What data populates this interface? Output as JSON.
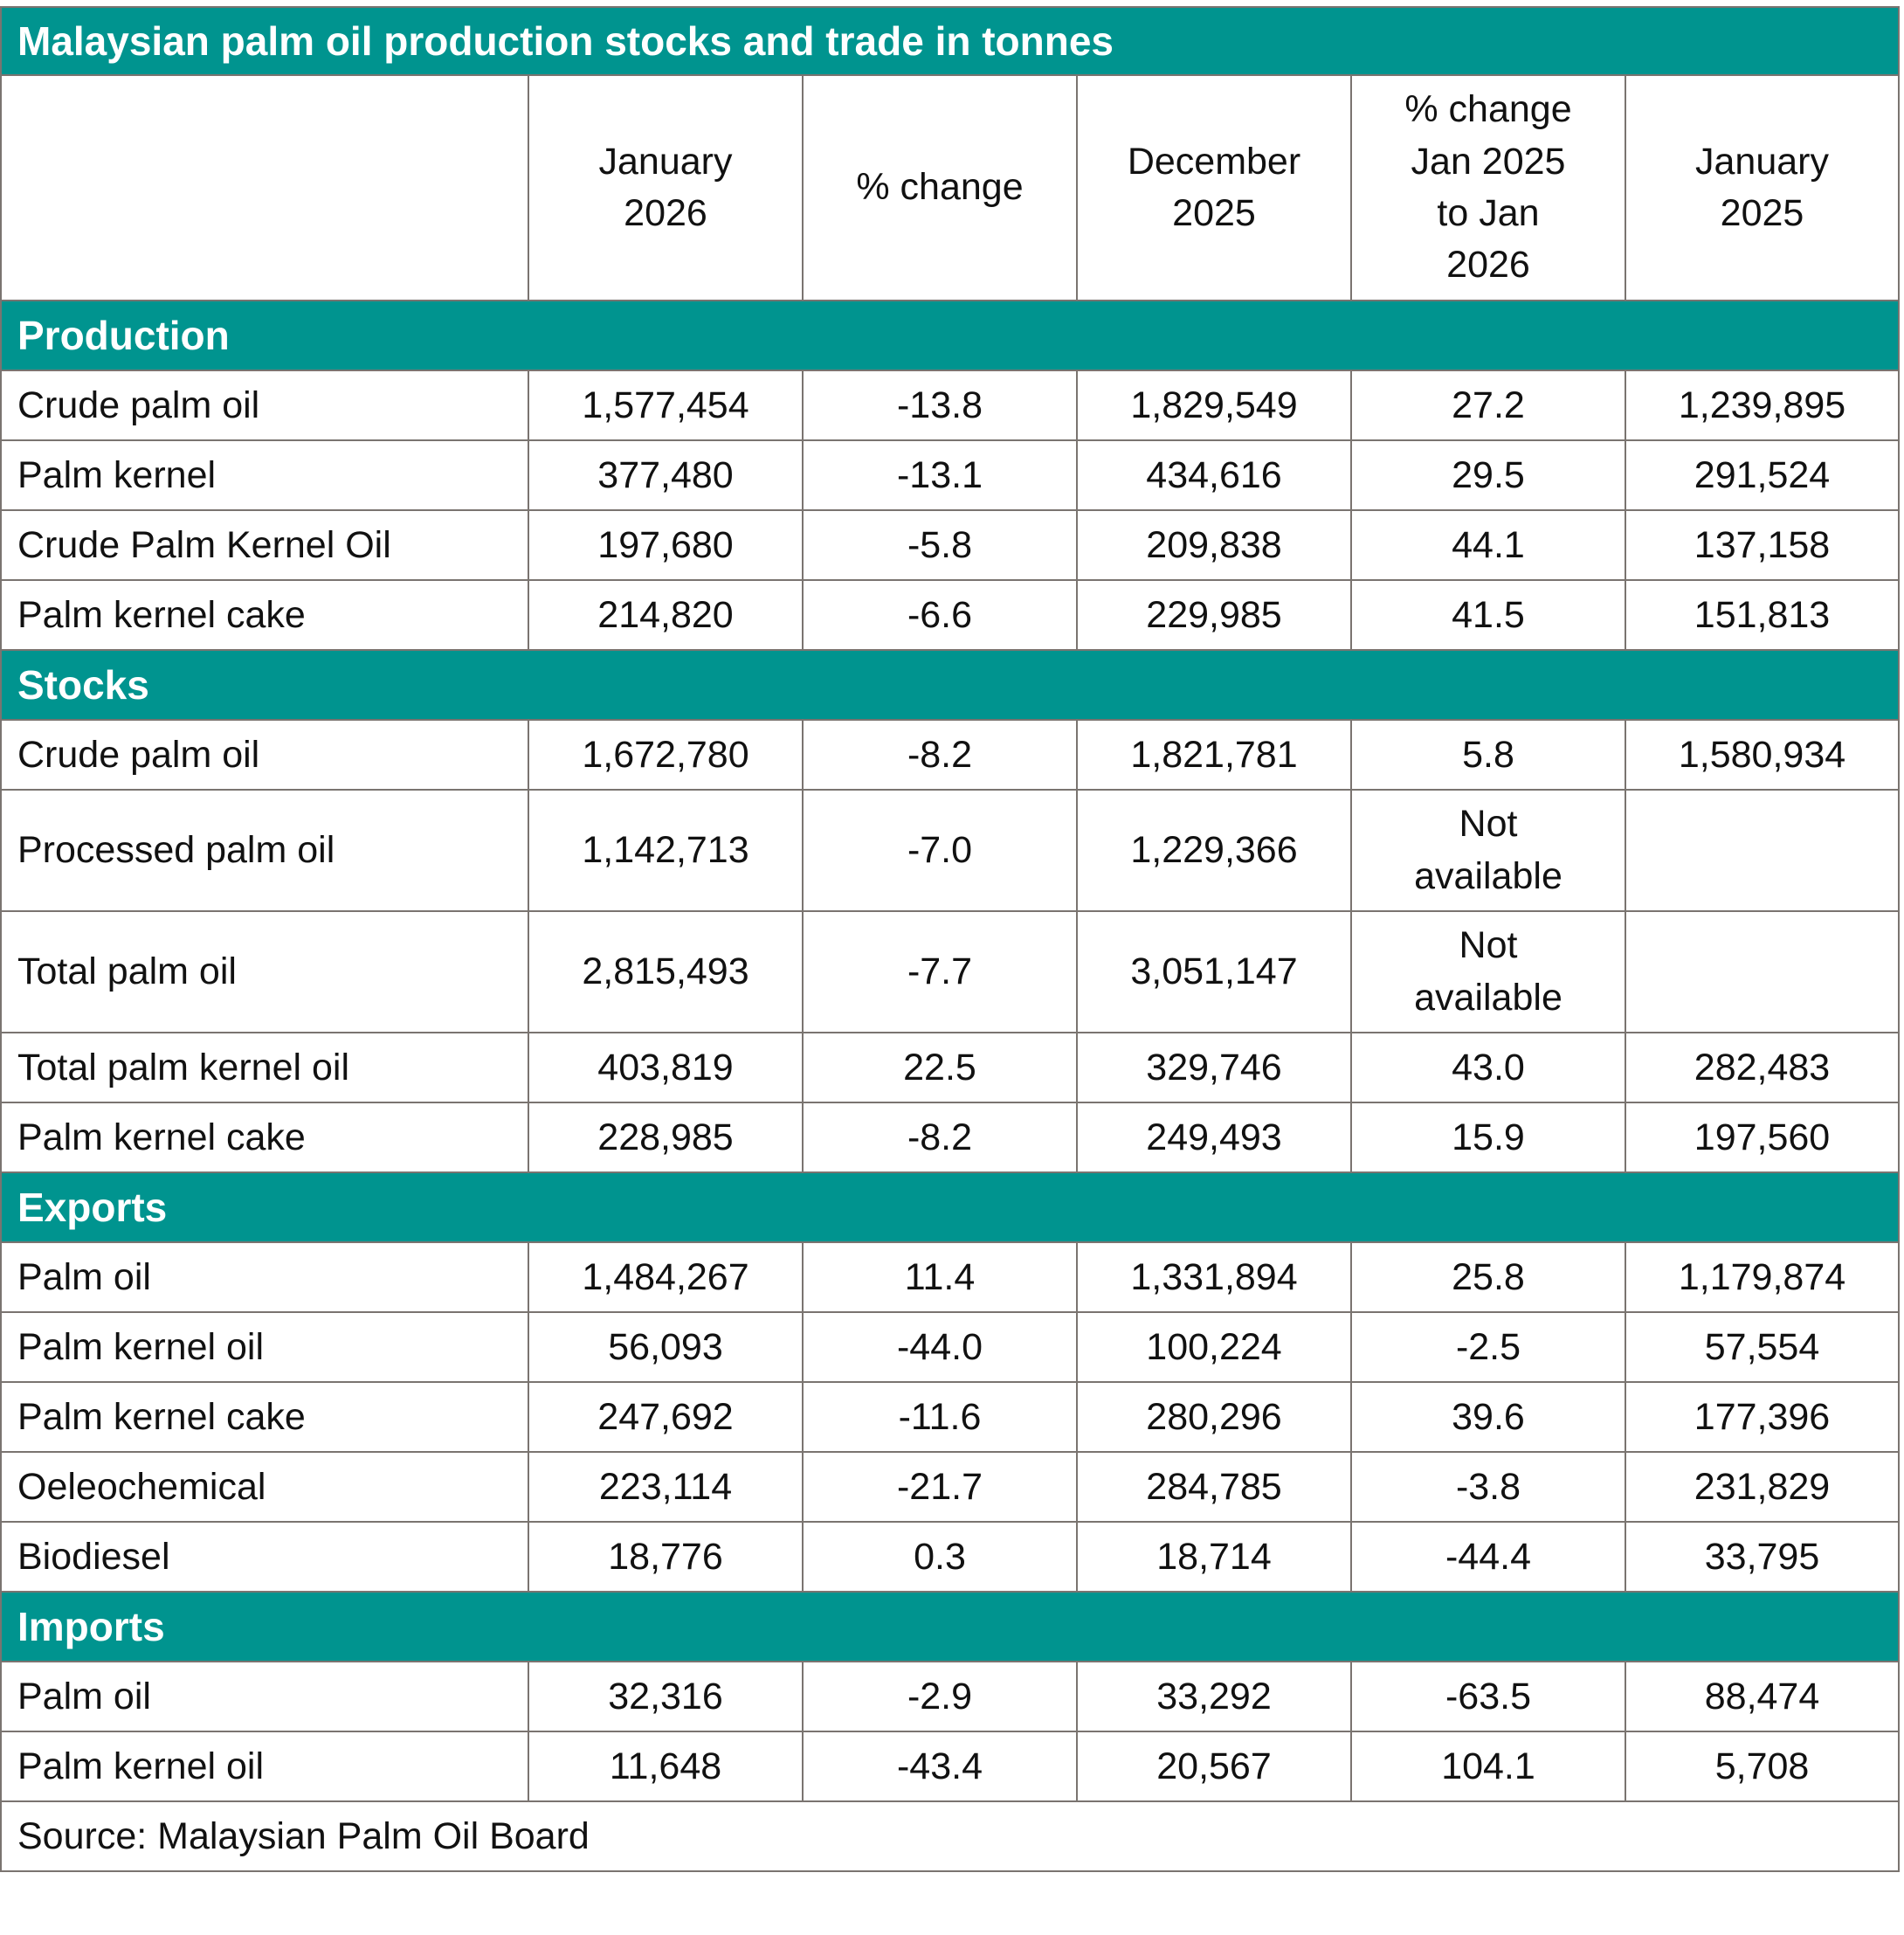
{
  "title": "Malaysian palm oil production stocks and trade in tonnes",
  "accent_color": "#00948f",
  "columns": [
    "",
    "January 2026",
    "% change",
    "December 2025",
    "% change Jan 2025 to Jan 2026",
    "January 2025"
  ],
  "sections": [
    {
      "name": "Production",
      "rows": [
        [
          "Crude palm oil",
          "1,577,454",
          "-13.8",
          "1,829,549",
          "27.2",
          "1,239,895"
        ],
        [
          "Palm kernel",
          "377,480",
          "-13.1",
          "434,616",
          "29.5",
          "291,524"
        ],
        [
          "Crude Palm Kernel Oil",
          "197,680",
          "-5.8",
          "209,838",
          "44.1",
          "137,158"
        ],
        [
          "Palm kernel cake",
          "214,820",
          "-6.6",
          "229,985",
          "41.5",
          "151,813"
        ]
      ]
    },
    {
      "name": "Stocks",
      "rows": [
        [
          "Crude palm oil",
          "1,672,780",
          "-8.2",
          "1,821,781",
          "5.8",
          "1,580,934"
        ],
        [
          "Processed palm oil",
          "1,142,713",
          "-7.0",
          "1,229,366",
          "Not available",
          ""
        ],
        [
          "Total palm oil",
          "2,815,493",
          "-7.7",
          "3,051,147",
          "Not available",
          ""
        ],
        [
          "Total palm kernel oil",
          "403,819",
          "22.5",
          "329,746",
          "43.0",
          "282,483"
        ],
        [
          "Palm kernel cake",
          "228,985",
          "-8.2",
          "249,493",
          "15.9",
          "197,560"
        ]
      ]
    },
    {
      "name": "Exports",
      "rows": [
        [
          "Palm oil",
          "1,484,267",
          "11.4",
          "1,331,894",
          "25.8",
          "1,179,874"
        ],
        [
          "Palm kernel oil",
          "56,093",
          "-44.0",
          "100,224",
          "-2.5",
          "57,554"
        ],
        [
          "Palm kernel cake",
          "247,692",
          "-11.6",
          "280,296",
          "39.6",
          "177,396"
        ],
        [
          "Oeleochemical",
          "223,114",
          "-21.7",
          "284,785",
          "-3.8",
          "231,829"
        ],
        [
          "Biodiesel",
          "18,776",
          "0.3",
          "18,714",
          "-44.4",
          "33,795"
        ]
      ]
    },
    {
      "name": "Imports",
      "rows": [
        [
          "Palm oil",
          "32,316",
          "-2.9",
          "33,292",
          "-63.5",
          "88,474"
        ],
        [
          "Palm kernel oil",
          "11,648",
          "-43.4",
          "20,567",
          "104.1",
          "5,708"
        ]
      ]
    }
  ],
  "source": "Source: Malaysian Palm Oil Board"
}
